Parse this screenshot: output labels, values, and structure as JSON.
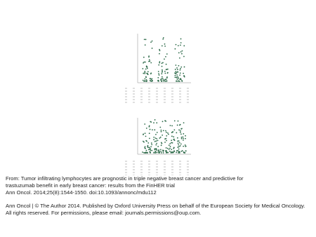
{
  "caption": {
    "title_lines": [
      "From: Tumor infiltrating lymphocytes are prognostic in triple negative breast cancer and predictive for",
      "trastuzumab benefit in early breast cancer: results from the FinHER trial"
    ],
    "citation": "Ann Oncol. 2014;25(8):1544-1550. doi:10.1093/annonc/mdu112",
    "copyright_lines": [
      "Ann Oncol | © The Author 2014. Published by Oxford University Press on behalf of the European Society for Medical Oncology.",
      "All rights reserved. For permissions, please email: journals.permissions@oup.com."
    ]
  }
}
